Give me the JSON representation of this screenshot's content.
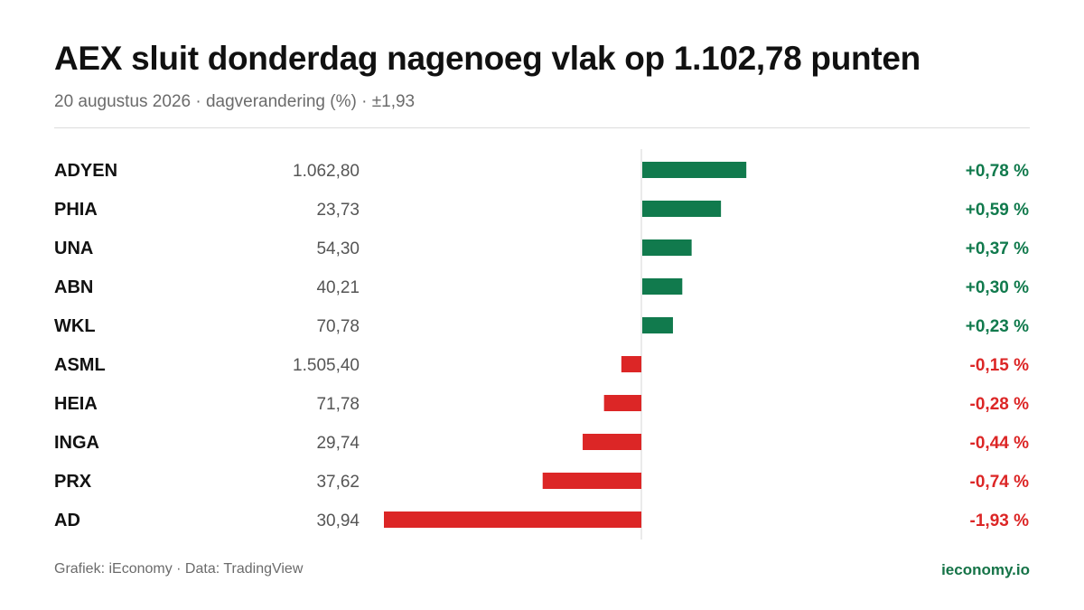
{
  "header": {
    "title": "AEX sluit donderdag nagenoeg vlak op 1.102,78 punten",
    "subtitle": "20 augustus 2026 · dagverandering (%) · ±1,93"
  },
  "footer": {
    "source": "Grafiek: iEconomy · Data: TradingView",
    "brand": "ieconomy.io"
  },
  "colors": {
    "positive": "#117a4d",
    "negative": "#dc2626",
    "axis": "#d4d4d4"
  },
  "chart_data": {
    "type": "bar",
    "orientation": "horizontal",
    "title": "AEX sluit donderdag nagenoeg vlak op 1.102,78 punten",
    "xlim": [
      -1.93,
      1.93
    ],
    "grid": false,
    "legend": "none",
    "rows": [
      {
        "ticker": "ADYEN",
        "price": "1.062,80",
        "value": 0.78,
        "label": "+0,78 %"
      },
      {
        "ticker": "PHIA",
        "price": "23,73",
        "value": 0.59,
        "label": "+0,59 %"
      },
      {
        "ticker": "UNA",
        "price": "54,30",
        "value": 0.37,
        "label": "+0,37 %"
      },
      {
        "ticker": "ABN",
        "price": "40,21",
        "value": 0.3,
        "label": "+0,30 %"
      },
      {
        "ticker": "WKL",
        "price": "70,78",
        "value": 0.23,
        "label": "+0,23 %"
      },
      {
        "ticker": "ASML",
        "price": "1.505,40",
        "value": -0.15,
        "label": "-0,15 %"
      },
      {
        "ticker": "HEIA",
        "price": "71,78",
        "value": -0.28,
        "label": "-0,28 %"
      },
      {
        "ticker": "INGA",
        "price": "29,74",
        "value": -0.44,
        "label": "-0,44 %"
      },
      {
        "ticker": "PRX",
        "price": "37,62",
        "value": -0.74,
        "label": "-0,74 %"
      },
      {
        "ticker": "AD",
        "price": "30,94",
        "value": -1.93,
        "label": "-1,93 %"
      }
    ]
  }
}
